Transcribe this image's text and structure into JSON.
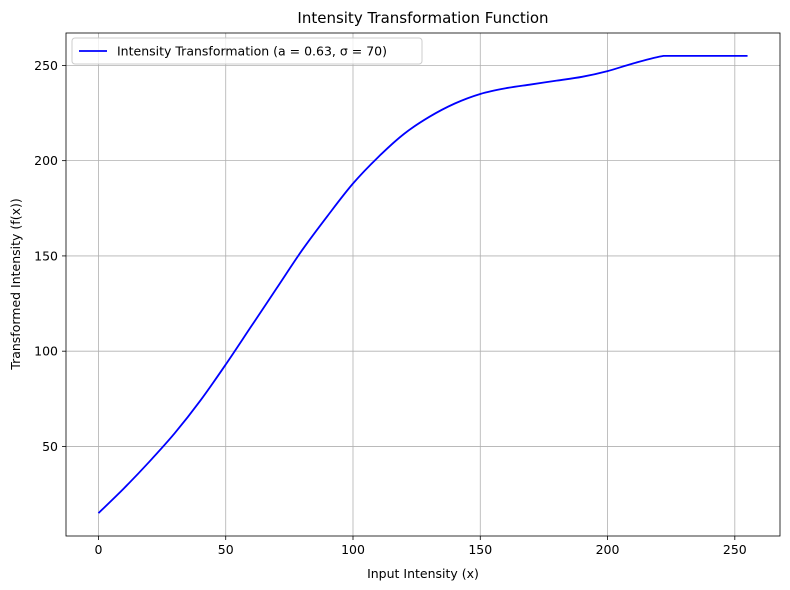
{
  "chart_data": {
    "type": "line",
    "title": "Intensity Transformation Function",
    "xlabel": "Input Intensity (x)",
    "ylabel": "Transformed Intensity (f(x))",
    "xlim": [
      -12.75,
      267.75
    ],
    "ylim": [
      3,
      267
    ],
    "xticks": [
      0,
      50,
      100,
      150,
      200,
      250
    ],
    "yticks": [
      50,
      100,
      150,
      200,
      250
    ],
    "grid": true,
    "legend_position": "upper-left",
    "series": [
      {
        "name": "Intensity Transformation (a = 0.63, σ = 70)",
        "color": "#0000ff",
        "x": [
          0,
          10,
          20,
          30,
          40,
          50,
          60,
          70,
          80,
          90,
          100,
          110,
          120,
          130,
          140,
          150,
          160,
          170,
          180,
          190,
          200,
          210,
          222,
          230,
          240,
          255
        ],
        "y": [
          15,
          28,
          42,
          57,
          74,
          93,
          113,
          133,
          153,
          171,
          188,
          202,
          214,
          223,
          230,
          235,
          238,
          240,
          242,
          244,
          247,
          251,
          255,
          255,
          255,
          255
        ]
      }
    ]
  }
}
